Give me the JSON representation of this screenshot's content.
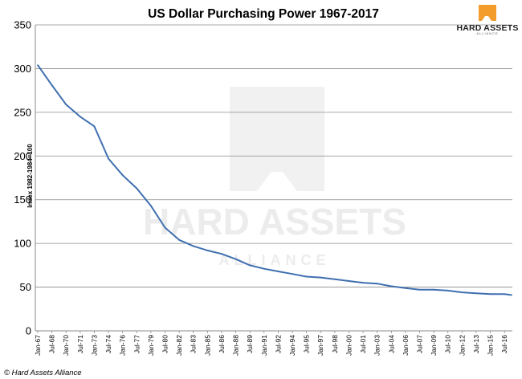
{
  "chart_data": {
    "type": "line",
    "title": "US Dollar Purchasing Power 1967-2017",
    "ylabel": "Index 1982-1984=100",
    "xlabel": "",
    "ylim": [
      0,
      350
    ],
    "y_ticks": [
      "0",
      "50",
      "100",
      "150",
      "200",
      "250",
      "300",
      "350"
    ],
    "grid": true,
    "legend": "none",
    "x_ticks": [
      "Jan-67",
      "Jul-68",
      "Jan-70",
      "Jul-71",
      "Jan-73",
      "Jul-74",
      "Jan-76",
      "Jul-77",
      "Jan-79",
      "Jul-80",
      "Jan-82",
      "Jul-83",
      "Jan-85",
      "Jul-86",
      "Jan-88",
      "Jul-89",
      "Jan-91",
      "Jul-92",
      "Jan-94",
      "Jul-95",
      "Jan-97",
      "Jul-98",
      "Jan-00",
      "Jul-01",
      "Jan-03",
      "Jul-04",
      "Jan-06",
      "Jul-07",
      "Jan-09",
      "Jul-10",
      "Jan-12",
      "Jul-13",
      "Jan-15",
      "Jul-16"
    ],
    "series": [
      {
        "color": "#3f6fb0",
        "x": [
          "Jan-67",
          "Jul-68",
          "Jan-70",
          "Jul-71",
          "Jan-73",
          "Jul-74",
          "Jan-76",
          "Jul-77",
          "Jan-79",
          "Jul-80",
          "Jan-82",
          "Jul-83",
          "Jan-85",
          "Jul-86",
          "Jan-88",
          "Jul-89",
          "Jan-91",
          "Jul-92",
          "Jan-94",
          "Jul-95",
          "Jan-97",
          "Jul-98",
          "Jan-00",
          "Jul-01",
          "Jan-03",
          "Jul-04",
          "Jan-06",
          "Jul-07",
          "Jan-09",
          "Jul-10",
          "Jan-12",
          "Jul-13",
          "Jan-15",
          "Jul-16",
          "Apr-17"
        ],
        "values": [
          304,
          281,
          259,
          245,
          234,
          197,
          178,
          163,
          143,
          118,
          104,
          97,
          92,
          88,
          82,
          75,
          71,
          68,
          65,
          62,
          61,
          59,
          57,
          55,
          54,
          51,
          49,
          47,
          47,
          46,
          44,
          43,
          42,
          42,
          41
        ]
      }
    ]
  },
  "copyright": "© Hard Assets Alliance",
  "logo": {
    "name": "HARD ASSETS",
    "tagline": "ALLIANCE"
  },
  "watermark": {
    "name": "HARD ASSETS",
    "tagline": "ALLIANCE"
  }
}
